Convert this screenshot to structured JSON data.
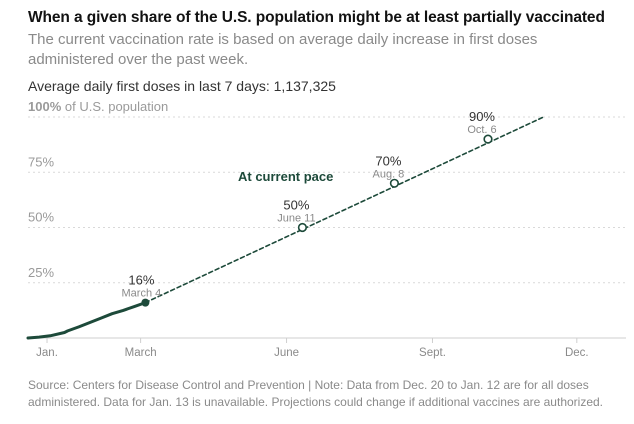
{
  "header": {
    "title": "When a given share of the U.S. population might be at least partially vaccinated",
    "subtitle": "The current vaccination rate is based on average daily increase in first doses administered over the past week.",
    "average_label": "Average daily first doses in last 7 days: 1,137,325"
  },
  "footnote": "Source: Centers for Disease Control and Prevention | Note: Data from Dec. 20 to Jan. 12 are for all doses administered. Data for Jan. 13 is unavailable. Projections could change if additional vaccines are authorized.",
  "chart_data": {
    "type": "line",
    "x_axis": {
      "type": "date",
      "range": [
        "2020-12-20",
        "2021-12-15"
      ],
      "tick_labels": [
        {
          "date": "2021-01-01",
          "label": "Jan."
        },
        {
          "date": "2021-03-01",
          "label": "March"
        },
        {
          "date": "2021-06-01",
          "label": "June"
        },
        {
          "date": "2021-09-01",
          "label": "Sept."
        },
        {
          "date": "2021-12-01",
          "label": "Dec."
        }
      ]
    },
    "y_axis": {
      "range": [
        0,
        100
      ],
      "unit": "% of U.S. population",
      "ticks": [
        {
          "value": 25,
          "label": "25%"
        },
        {
          "value": 50,
          "label": "50%"
        },
        {
          "value": 75,
          "label": "75%"
        },
        {
          "value": 100,
          "label": "100%",
          "suffix": "of U.S. population"
        }
      ],
      "grid": true
    },
    "series": [
      {
        "style": "actual",
        "color": "#1d4a3a",
        "points": [
          {
            "x": "2020-12-20",
            "y": 0
          },
          {
            "x": "2020-12-27",
            "y": 0.4
          },
          {
            "x": "2021-01-03",
            "y": 1
          },
          {
            "x": "2021-01-12",
            "y": 2.5
          },
          {
            "x": "2021-01-14",
            "y": 3.2
          },
          {
            "x": "2021-01-21",
            "y": 5
          },
          {
            "x": "2021-01-28",
            "y": 7
          },
          {
            "x": "2021-02-04",
            "y": 9
          },
          {
            "x": "2021-02-11",
            "y": 11
          },
          {
            "x": "2021-02-18",
            "y": 12.5
          },
          {
            "x": "2021-02-25",
            "y": 14.2
          },
          {
            "x": "2021-03-04",
            "y": 16
          }
        ]
      },
      {
        "name": "At current pace",
        "style": "projection",
        "color": "#1d4a3a",
        "points": [
          {
            "x": "2021-03-04",
            "y": 16
          },
          {
            "x": "2021-11-10",
            "y": 100
          }
        ]
      }
    ],
    "milestones": [
      {
        "x": "2021-03-04",
        "y": 16,
        "value_label": "16%",
        "date_label": "March 4",
        "marker": "filled"
      },
      {
        "x": "2021-06-11",
        "y": 50,
        "value_label": "50%",
        "date_label": "June 11",
        "marker": "hollow"
      },
      {
        "x": "2021-08-08",
        "y": 70,
        "value_label": "70%",
        "date_label": "Aug. 8",
        "marker": "hollow"
      },
      {
        "x": "2021-10-06",
        "y": 90,
        "value_label": "90%",
        "date_label": "Oct. 6",
        "marker": "hollow"
      }
    ]
  }
}
